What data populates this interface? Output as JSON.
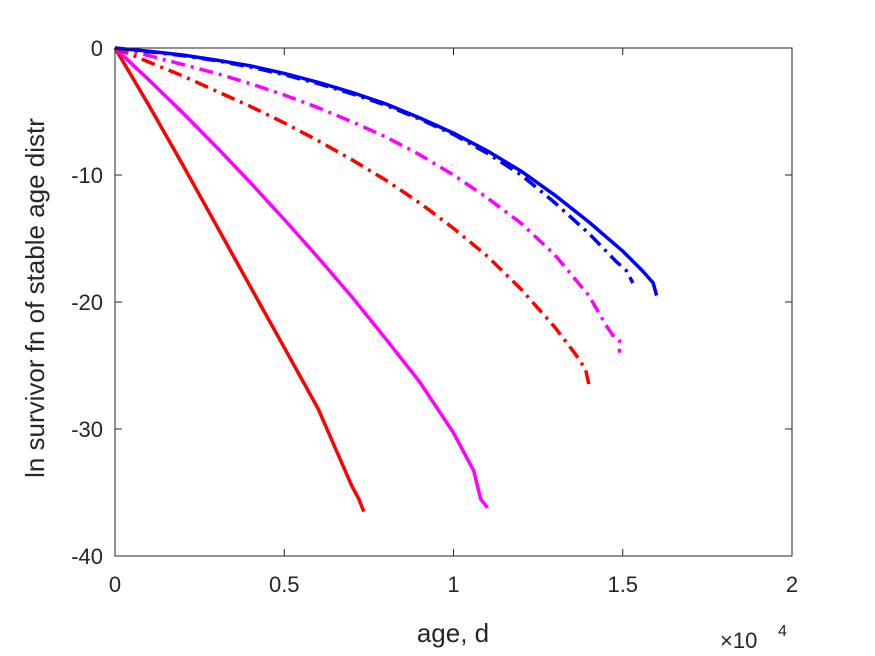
{
  "chart_data": {
    "type": "line",
    "xlabel": "age, d",
    "ylabel": "ln survivor fn of stable age distr",
    "xlim": [
      0,
      20000
    ],
    "ylim": [
      -40,
      0
    ],
    "x_multiplier": {
      "base": "×10",
      "exponent": "4"
    },
    "x_ticks": [
      {
        "value": 0,
        "label": "0"
      },
      {
        "value": 5000,
        "label": "0.5"
      },
      {
        "value": 10000,
        "label": "1"
      },
      {
        "value": 15000,
        "label": "1.5"
      },
      {
        "value": 20000,
        "label": "2"
      }
    ],
    "y_ticks": [
      {
        "value": 0,
        "label": "0"
      },
      {
        "value": -10,
        "label": "-10"
      },
      {
        "value": -20,
        "label": "-20"
      },
      {
        "value": -30,
        "label": "-30"
      },
      {
        "value": -40,
        "label": "-40"
      }
    ],
    "grid": false,
    "legend": false,
    "series": [
      {
        "color": "#ff0000",
        "style": "solid",
        "points": [
          [
            0,
            0
          ],
          [
            1000,
            -4.5
          ],
          [
            2000,
            -9.2
          ],
          [
            3000,
            -14
          ],
          [
            4000,
            -18.8
          ],
          [
            5000,
            -23.6
          ],
          [
            6000,
            -28.4
          ],
          [
            7000,
            -34.5
          ],
          [
            7200,
            -35.5
          ],
          [
            7350,
            -36.5
          ]
        ]
      },
      {
        "color": "#ff00ff",
        "style": "solid",
        "points": [
          [
            0,
            0
          ],
          [
            1000,
            -2.5
          ],
          [
            2000,
            -5.1
          ],
          [
            3000,
            -7.8
          ],
          [
            4000,
            -10.6
          ],
          [
            5000,
            -13.5
          ],
          [
            6000,
            -16.5
          ],
          [
            7000,
            -19.6
          ],
          [
            8000,
            -22.9
          ],
          [
            9000,
            -26.3
          ],
          [
            10000,
            -30.3
          ],
          [
            10600,
            -33.3
          ],
          [
            10800,
            -35.5
          ],
          [
            11000,
            -36.2
          ]
        ]
      },
      {
        "color": "#ff0000",
        "style": "dashdot",
        "points": [
          [
            0,
            0
          ],
          [
            1000,
            -1.1
          ],
          [
            2000,
            -2.2
          ],
          [
            3000,
            -3.4
          ],
          [
            4000,
            -4.6
          ],
          [
            5000,
            -5.9
          ],
          [
            6000,
            -7.3
          ],
          [
            7000,
            -8.8
          ],
          [
            8000,
            -10.4
          ],
          [
            9000,
            -12.2
          ],
          [
            10000,
            -14.2
          ],
          [
            11000,
            -16.4
          ],
          [
            12000,
            -19.0
          ],
          [
            13000,
            -22.0
          ],
          [
            13600,
            -24.1
          ],
          [
            13900,
            -25.3
          ],
          [
            14000,
            -26.5
          ]
        ]
      },
      {
        "color": "#ff00ff",
        "style": "dashdot",
        "points": [
          [
            0,
            0
          ],
          [
            1000,
            -0.6
          ],
          [
            2000,
            -1.3
          ],
          [
            3000,
            -2.0
          ],
          [
            4000,
            -2.8
          ],
          [
            5000,
            -3.7
          ],
          [
            6000,
            -4.7
          ],
          [
            7000,
            -5.8
          ],
          [
            8000,
            -7.0
          ],
          [
            9000,
            -8.4
          ],
          [
            10000,
            -10.0
          ],
          [
            11000,
            -11.8
          ],
          [
            12000,
            -13.8
          ],
          [
            13000,
            -16.3
          ],
          [
            14000,
            -19.5
          ],
          [
            14500,
            -21.8
          ],
          [
            14700,
            -22.6
          ],
          [
            14900,
            -23.0
          ],
          [
            14900,
            -24.0
          ]
        ]
      },
      {
        "color": "#0000ff",
        "style": "dashdot",
        "points": [
          [
            0,
            0
          ],
          [
            1000,
            -0.3
          ],
          [
            2000,
            -0.6
          ],
          [
            3000,
            -1.0
          ],
          [
            4000,
            -1.5
          ],
          [
            5000,
            -2.1
          ],
          [
            6000,
            -2.8
          ],
          [
            7000,
            -3.6
          ],
          [
            8000,
            -4.5
          ],
          [
            9000,
            -5.6
          ],
          [
            10000,
            -6.8
          ],
          [
            11000,
            -8.3
          ],
          [
            12000,
            -10.0
          ],
          [
            13000,
            -12.2
          ],
          [
            14000,
            -14.6
          ],
          [
            14800,
            -16.8
          ],
          [
            15100,
            -17.5
          ],
          [
            15300,
            -18.5
          ]
        ]
      },
      {
        "color": "#0000ff",
        "style": "solid",
        "points": [
          [
            0,
            0
          ],
          [
            1000,
            -0.25
          ],
          [
            2000,
            -0.55
          ],
          [
            3000,
            -0.95
          ],
          [
            4000,
            -1.4
          ],
          [
            5000,
            -2.0
          ],
          [
            6000,
            -2.7
          ],
          [
            7000,
            -3.5
          ],
          [
            8000,
            -4.4
          ],
          [
            9000,
            -5.5
          ],
          [
            10000,
            -6.7
          ],
          [
            11000,
            -8.1
          ],
          [
            12000,
            -9.7
          ],
          [
            13000,
            -11.6
          ],
          [
            14000,
            -13.7
          ],
          [
            15000,
            -16.0
          ],
          [
            15600,
            -17.6
          ],
          [
            15900,
            -18.5
          ],
          [
            16000,
            -19.5
          ]
        ]
      }
    ]
  }
}
